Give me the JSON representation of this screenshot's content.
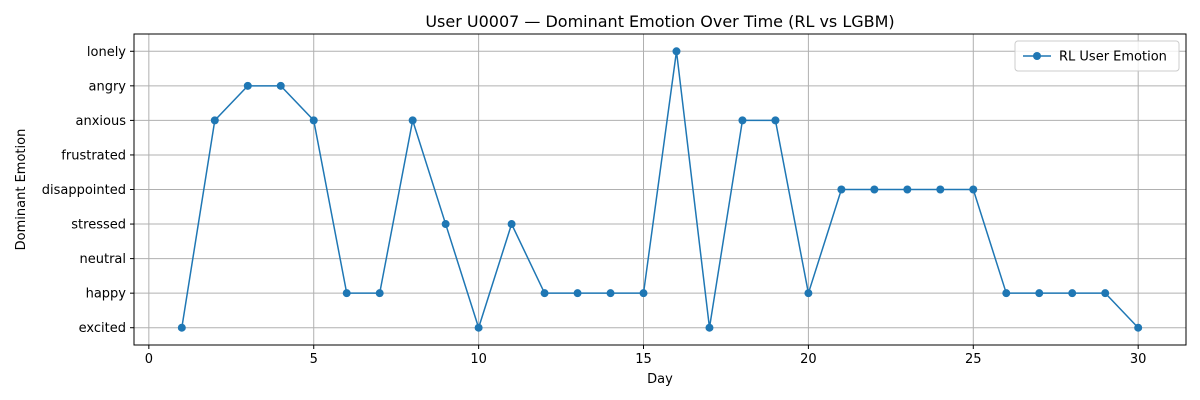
{
  "chart_data": {
    "type": "line",
    "title": "User U0007 — Dominant Emotion Over Time (RL vs LGBM)",
    "xlabel": "Day",
    "ylabel": "Dominant Emotion",
    "xlim": [
      -0.45,
      31.45
    ],
    "xticks": [
      0,
      5,
      10,
      15,
      20,
      25,
      30
    ],
    "categories_y": [
      "excited",
      "happy",
      "neutral",
      "stressed",
      "disappointed",
      "frustrated",
      "anxious",
      "angry",
      "lonely"
    ],
    "grid": true,
    "legend_position": "top-right",
    "colors": {
      "series": "#1f77b4",
      "grid": "#b0b0b0"
    },
    "series": [
      {
        "name": "RL User Emotion",
        "x": [
          1,
          2,
          3,
          4,
          5,
          6,
          7,
          8,
          9,
          10,
          11,
          12,
          13,
          14,
          15,
          16,
          17,
          18,
          19,
          20,
          21,
          22,
          23,
          24,
          25,
          26,
          27,
          28,
          29,
          30
        ],
        "y": [
          "excited",
          "anxious",
          "angry",
          "angry",
          "anxious",
          "happy",
          "happy",
          "anxious",
          "stressed",
          "excited",
          "stressed",
          "happy",
          "happy",
          "happy",
          "happy",
          "lonely",
          "excited",
          "anxious",
          "anxious",
          "happy",
          "disappointed",
          "disappointed",
          "disappointed",
          "disappointed",
          "disappointed",
          "happy",
          "happy",
          "happy",
          "happy",
          "excited"
        ]
      }
    ]
  }
}
